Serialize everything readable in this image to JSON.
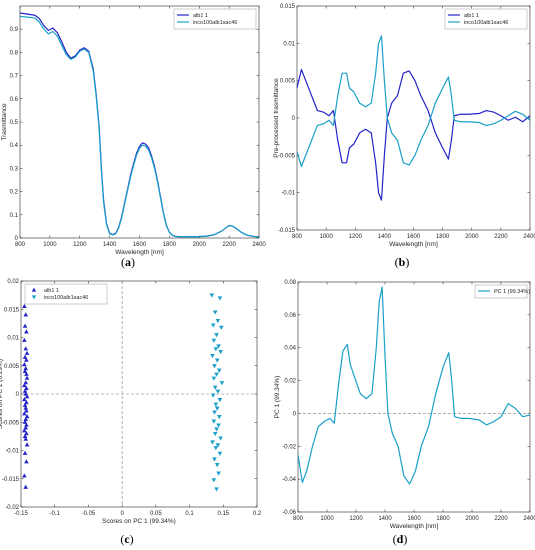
{
  "colors": {
    "series1": "#2424c8",
    "series2": "#1aa0c8",
    "axis": "#262626",
    "zero_line": "#7f7f7f"
  },
  "chart_data": [
    {
      "panel": "(a)",
      "type": "line",
      "xlabel": "Wavelength [nm]",
      "ylabel": "Trasmittance",
      "xlim": [
        800,
        2400
      ],
      "ylim": [
        0,
        1
      ],
      "xticks": [
        800,
        1000,
        1200,
        1400,
        1600,
        1800,
        2000,
        2200,
        2400
      ],
      "yticks": [
        0,
        0.1,
        0.2,
        0.3,
        0.4,
        0.5,
        0.6,
        0.7,
        0.8,
        0.9
      ],
      "legend": "top-right",
      "x": [
        800,
        850,
        900,
        930,
        960,
        990,
        1020,
        1050,
        1080,
        1110,
        1140,
        1170,
        1200,
        1230,
        1260,
        1290,
        1310,
        1330,
        1345,
        1360,
        1380,
        1400,
        1420,
        1440,
        1460,
        1480,
        1500,
        1520,
        1540,
        1560,
        1580,
        1600,
        1620,
        1640,
        1660,
        1680,
        1700,
        1720,
        1740,
        1760,
        1780,
        1800,
        1820,
        1840,
        1860,
        1880,
        1900,
        1950,
        2000,
        2050,
        2100,
        2150,
        2180,
        2200,
        2220,
        2250,
        2280,
        2320,
        2360,
        2400
      ],
      "series": [
        {
          "name": "alb1 1",
          "values": [
            0.97,
            0.965,
            0.96,
            0.945,
            0.915,
            0.895,
            0.905,
            0.885,
            0.845,
            0.8,
            0.775,
            0.785,
            0.81,
            0.82,
            0.805,
            0.73,
            0.62,
            0.48,
            0.3,
            0.16,
            0.06,
            0.02,
            0.015,
            0.02,
            0.045,
            0.09,
            0.15,
            0.21,
            0.27,
            0.32,
            0.365,
            0.395,
            0.41,
            0.405,
            0.39,
            0.355,
            0.31,
            0.25,
            0.18,
            0.11,
            0.055,
            0.025,
            0.012,
            0.007,
            0.006,
            0.006,
            0.006,
            0.006,
            0.006,
            0.008,
            0.014,
            0.03,
            0.045,
            0.054,
            0.052,
            0.04,
            0.025,
            0.012,
            0.007,
            0.005
          ]
        },
        {
          "name": "inco100alb1sac46",
          "values": [
            0.955,
            0.952,
            0.948,
            0.93,
            0.9,
            0.88,
            0.89,
            0.87,
            0.83,
            0.79,
            0.77,
            0.78,
            0.805,
            0.815,
            0.8,
            0.72,
            0.61,
            0.47,
            0.29,
            0.15,
            0.055,
            0.018,
            0.013,
            0.018,
            0.042,
            0.085,
            0.145,
            0.205,
            0.262,
            0.312,
            0.357,
            0.387,
            0.4,
            0.396,
            0.38,
            0.347,
            0.302,
            0.244,
            0.175,
            0.107,
            0.053,
            0.024,
            0.011,
            0.007,
            0.006,
            0.006,
            0.006,
            0.006,
            0.006,
            0.008,
            0.014,
            0.03,
            0.045,
            0.054,
            0.052,
            0.04,
            0.025,
            0.012,
            0.007,
            0.005
          ]
        }
      ]
    },
    {
      "panel": "(b)",
      "type": "line",
      "xlabel": "Wavelength [nm]",
      "ylabel": "Pre-processed trasmittance",
      "xlim": [
        800,
        2400
      ],
      "ylim": [
        -0.015,
        0.015
      ],
      "xticks": [
        800,
        1000,
        1200,
        1400,
        1600,
        1800,
        2000,
        2200,
        2400
      ],
      "yticks": [
        -0.015,
        -0.01,
        -0.005,
        0,
        0.005,
        0.01,
        0.015
      ],
      "legend": "top-right",
      "x": [
        800,
        830,
        860,
        900,
        940,
        980,
        1020,
        1050,
        1080,
        1110,
        1140,
        1160,
        1190,
        1230,
        1270,
        1310,
        1340,
        1360,
        1380,
        1400,
        1420,
        1450,
        1490,
        1530,
        1570,
        1610,
        1650,
        1700,
        1750,
        1800,
        1840,
        1860,
        1880,
        1920,
        1980,
        2050,
        2100,
        2150,
        2200,
        2250,
        2300,
        2350,
        2400
      ],
      "series": [
        {
          "name": "alb1 1",
          "values": [
            0.004,
            0.0065,
            0.005,
            0.003,
            0.001,
            0.0008,
            0.0003,
            0.001,
            -0.003,
            -0.006,
            -0.006,
            -0.004,
            -0.0035,
            -0.002,
            -0.0015,
            -0.002,
            -0.006,
            -0.01,
            -0.011,
            -0.005,
            0.0,
            0.002,
            0.003,
            0.006,
            0.0063,
            0.005,
            0.003,
            0.001,
            -0.002,
            -0.004,
            -0.0055,
            -0.003,
            0.0003,
            0.0005,
            0.0005,
            0.0006,
            0.001,
            0.0008,
            0.0003,
            -0.0003,
            0.0001,
            -0.0005,
            0.0003
          ]
        },
        {
          "name": "inco100alb1sac46",
          "values": [
            -0.0045,
            -0.0065,
            -0.005,
            -0.003,
            -0.001,
            -0.0008,
            -0.0003,
            -0.001,
            0.003,
            0.006,
            0.006,
            0.004,
            0.0035,
            0.002,
            0.0015,
            0.002,
            0.006,
            0.01,
            0.011,
            0.005,
            0.0,
            -0.002,
            -0.003,
            -0.006,
            -0.0063,
            -0.005,
            -0.003,
            -0.001,
            0.002,
            0.004,
            0.0055,
            0.003,
            -0.0003,
            -0.0005,
            -0.0005,
            -0.0006,
            -0.001,
            -0.0008,
            -0.0003,
            0.0003,
            0.0009,
            0.0005,
            -0.0003
          ]
        }
      ]
    },
    {
      "panel": "(c)",
      "type": "scatter",
      "xlabel": "Scores on PC 1 (99.34%)",
      "ylabel": "Scores on PC 2 (0.29%)",
      "xlim": [
        -0.15,
        0.2
      ],
      "ylim": [
        -0.02,
        0.02
      ],
      "xticks": [
        -0.15,
        -0.1,
        -0.05,
        0,
        0.05,
        0.1,
        0.15,
        0.2
      ],
      "yticks": [
        -0.02,
        -0.015,
        -0.01,
        -0.005,
        0,
        0.005,
        0.01,
        0.015,
        0.02
      ],
      "legend": "top-left",
      "series": [
        {
          "name": "alb1 1",
          "marker": "triangle-up",
          "x": [
            -0.145,
            -0.143,
            -0.144,
            -0.142,
            -0.145,
            -0.143,
            -0.141,
            -0.144,
            -0.142,
            -0.145,
            -0.143,
            -0.144,
            -0.142,
            -0.141,
            -0.143,
            -0.145,
            -0.142,
            -0.144,
            -0.143,
            -0.141,
            -0.145,
            -0.142,
            -0.144,
            -0.143,
            -0.142,
            -0.145,
            -0.141,
            -0.143,
            -0.144,
            -0.142,
            -0.143,
            -0.145,
            -0.142,
            -0.144,
            -0.143,
            -0.141,
            -0.144,
            -0.142,
            -0.145,
            -0.143
          ],
          "y": [
            0.0155,
            0.014,
            0.012,
            0.011,
            0.0095,
            0.008,
            0.0072,
            0.0065,
            0.006,
            0.0052,
            0.0045,
            0.004,
            0.0035,
            0.0028,
            0.002,
            0.0015,
            0.001,
            0.0005,
            0.0,
            -0.0005,
            -0.001,
            -0.0015,
            -0.002,
            -0.0025,
            -0.003,
            -0.0035,
            -0.004,
            -0.0045,
            -0.005,
            -0.0055,
            -0.006,
            -0.0065,
            -0.007,
            -0.0075,
            -0.008,
            -0.009,
            -0.0105,
            -0.012,
            -0.0145,
            -0.0165
          ]
        },
        {
          "name": "inco100alb1sac46",
          "marker": "triangle-down",
          "x": [
            0.133,
            0.145,
            0.138,
            0.142,
            0.135,
            0.147,
            0.14,
            0.136,
            0.143,
            0.139,
            0.146,
            0.134,
            0.141,
            0.137,
            0.144,
            0.14,
            0.136,
            0.148,
            0.138,
            0.142,
            0.135,
            0.145,
            0.139,
            0.141,
            0.137,
            0.144,
            0.136,
            0.143,
            0.14,
            0.138,
            0.146,
            0.134,
            0.142,
            0.139,
            0.145,
            0.137,
            0.141,
            0.143,
            0.136,
            0.14
          ],
          "y": [
            0.0175,
            0.017,
            0.0145,
            0.013,
            0.0122,
            0.0118,
            0.0105,
            0.0095,
            0.0085,
            0.008,
            0.0075,
            0.0068,
            0.006,
            0.005,
            0.0042,
            0.0035,
            0.0028,
            0.002,
            0.0012,
            0.0005,
            -0.0002,
            -0.001,
            -0.0018,
            -0.0025,
            -0.0032,
            -0.004,
            -0.0048,
            -0.0055,
            -0.0062,
            -0.007,
            -0.0078,
            -0.0085,
            -0.009,
            -0.0095,
            -0.0105,
            -0.0115,
            -0.0125,
            -0.014,
            -0.0152,
            -0.0168
          ]
        }
      ]
    },
    {
      "panel": "(d)",
      "type": "line",
      "xlabel": "Wavelength [nm]",
      "ylabel": "PC 1 (99.34%)",
      "xlim": [
        800,
        2400
      ],
      "ylim": [
        -0.06,
        0.08
      ],
      "xticks": [
        800,
        1000,
        1200,
        1400,
        1600,
        1800,
        2000,
        2200,
        2400
      ],
      "yticks": [
        -0.06,
        -0.04,
        -0.02,
        0,
        0.02,
        0.04,
        0.06,
        0.08
      ],
      "legend": "top-right",
      "x": [
        800,
        830,
        860,
        900,
        940,
        980,
        1020,
        1050,
        1080,
        1110,
        1140,
        1160,
        1190,
        1230,
        1270,
        1310,
        1340,
        1360,
        1380,
        1400,
        1420,
        1450,
        1490,
        1530,
        1570,
        1610,
        1650,
        1700,
        1750,
        1800,
        1840,
        1860,
        1880,
        1920,
        1980,
        2050,
        2100,
        2150,
        2200,
        2250,
        2300,
        2350,
        2400
      ],
      "series": [
        {
          "name": "PC 1 (99.34%)",
          "values": [
            -0.025,
            -0.042,
            -0.035,
            -0.02,
            -0.008,
            -0.005,
            -0.003,
            -0.006,
            0.018,
            0.038,
            0.042,
            0.03,
            0.022,
            0.012,
            0.009,
            0.012,
            0.04,
            0.068,
            0.077,
            0.035,
            0.0,
            -0.012,
            -0.02,
            -0.038,
            -0.043,
            -0.035,
            -0.02,
            -0.008,
            0.012,
            0.028,
            0.037,
            0.02,
            -0.002,
            -0.003,
            -0.003,
            -0.004,
            -0.007,
            -0.005,
            -0.002,
            0.006,
            0.003,
            -0.002,
            -0.001
          ]
        }
      ]
    }
  ],
  "panel_labels": [
    "(a)",
    "(b)",
    "(c)",
    "(d)"
  ]
}
